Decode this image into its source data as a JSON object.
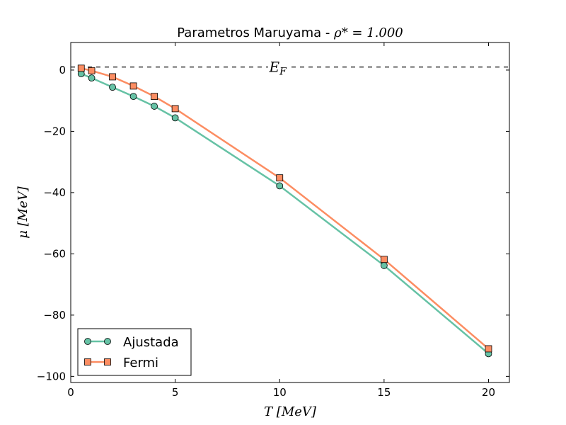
{
  "chart_data": {
    "type": "line",
    "title": "Parametros Maruyama - ",
    "title_math": "ρ* = 1.000",
    "xlabel": "T [MeV]",
    "ylabel": "μ [MeV]",
    "xlim": [
      0,
      21
    ],
    "ylim": [
      -102,
      9
    ],
    "xticks": [
      0,
      5,
      10,
      15,
      20
    ],
    "yticks": [
      0,
      -20,
      -40,
      -60,
      -80,
      -100
    ],
    "xtick_labels": [
      "0",
      "5",
      "10",
      "15",
      "20"
    ],
    "ytick_labels": [
      "0",
      "−20",
      "−40",
      "−60",
      "−80",
      "−100"
    ],
    "grid": false,
    "legend_position": "lower-left",
    "reference_line": {
      "y": 1,
      "label": "E_F",
      "style": "dashed",
      "color": "#000000"
    },
    "series": [
      {
        "name": "Ajustada",
        "marker": "circle",
        "color": "#66c2a5",
        "x": [
          0.5,
          1,
          2,
          3,
          4,
          5,
          10,
          15,
          20
        ],
        "y": [
          -1.2,
          -2.6,
          -5.6,
          -8.6,
          -11.8,
          -15.6,
          -37.8,
          -63.8,
          -92.6
        ]
      },
      {
        "name": "Fermi",
        "marker": "square",
        "color": "#fc8d62",
        "x": [
          0.5,
          1,
          2,
          3,
          4,
          5,
          10,
          15,
          20
        ],
        "y": [
          0.6,
          -0.2,
          -2.2,
          -5.2,
          -8.6,
          -12.6,
          -35.2,
          -61.8,
          -91
        ]
      }
    ]
  }
}
